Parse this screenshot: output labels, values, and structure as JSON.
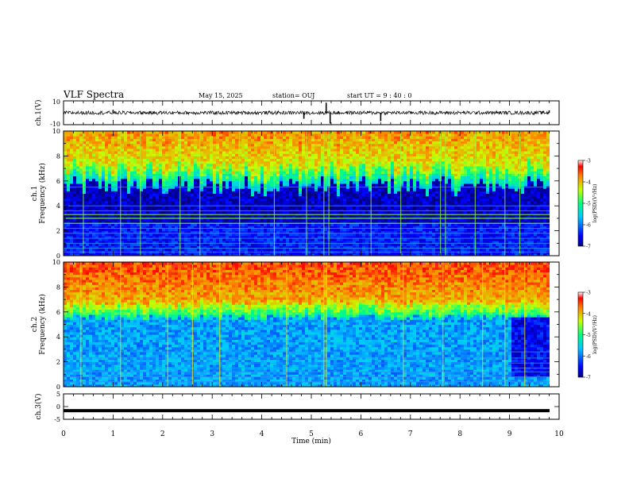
{
  "header": {
    "title": "VLF Spectra",
    "date": "May 15, 2025",
    "station": "station= OUJ",
    "start": "start  UT =   9 : 40 : 0"
  },
  "chart_data": [
    {
      "type": "line",
      "panel": "ch1-waveform",
      "ylabel": "ch.1(V)",
      "ylim": [
        -10,
        10
      ],
      "yticks": [
        "10",
        "-10"
      ],
      "xlim": [
        0,
        10
      ],
      "baseline": 0,
      "noise_amplitude": 1.5,
      "spikes": [
        {
          "x": 1.0,
          "y": 2.5
        },
        {
          "x": 4.85,
          "y": -5
        },
        {
          "x": 5.3,
          "y": 8.5
        },
        {
          "x": 5.38,
          "y": -9
        },
        {
          "x": 6.4,
          "y": -7
        },
        {
          "x": 9.8,
          "y": 2
        }
      ]
    },
    {
      "type": "heatmap",
      "panel": "ch1-spectrogram",
      "ylabel": "ch.1 Frequency (kHz)",
      "ylim": [
        0,
        10
      ],
      "yticks": [
        "0",
        "2",
        "4",
        "6",
        "8",
        "10"
      ],
      "xlim": [
        0,
        9.8
      ],
      "colorbar": {
        "label": "log(PSD)(V²/Hz)",
        "ticks": [
          "-3",
          "-4",
          "-5",
          "-6",
          "-7"
        ],
        "range": [
          -7,
          -3
        ]
      },
      "lines_khz": [
        0.3,
        0.6,
        1.0,
        1.4,
        1.8,
        2.2,
        2.6,
        3.0,
        3.3,
        3.6,
        4.0,
        5.5
      ],
      "green_lines_khz": [
        2.6,
        3.0,
        3.3
      ],
      "verticals_min": [
        0.4,
        1.15,
        1.55,
        2.35,
        2.75,
        3.55,
        4.25,
        4.9,
        5.25,
        5.35,
        6.2,
        6.8,
        7.6,
        7.7,
        8.3,
        8.9,
        9.2
      ]
    },
    {
      "type": "heatmap",
      "panel": "ch2-spectrogram",
      "ylabel": "ch.2 Frequency (kHz)",
      "ylim": [
        0,
        10
      ],
      "yticks": [
        "0",
        "2",
        "4",
        "6",
        "8",
        "10"
      ],
      "xlim": [
        0,
        9.8
      ],
      "colorbar": {
        "label": "log(PSD)(V²/Hz)",
        "ticks": [
          "-3",
          "-4",
          "-5",
          "-6",
          "-7"
        ],
        "range": [
          -7,
          -3
        ]
      },
      "lines_khz": [
        0.4,
        0.8,
        1.2,
        1.5,
        1.9,
        2.3,
        2.8
      ],
      "dark_region": {
        "x": [
          9.0,
          9.8
        ],
        "freq_khz": [
          0.8,
          5.5
        ]
      },
      "verticals_min": [
        0.35,
        1.15,
        2.1,
        2.6,
        3.15,
        4.5,
        5.25,
        5.3,
        6.85,
        7.65,
        8.45,
        8.9,
        9.3
      ]
    },
    {
      "type": "line",
      "panel": "ch3-waveform",
      "ylabel": "ch.3(V)",
      "ylim": [
        -5,
        5
      ],
      "yticks": [
        "5",
        "0",
        "-5"
      ],
      "xlim": [
        0,
        10
      ],
      "values": [
        -1.6,
        -1.6
      ]
    }
  ],
  "x_axis": {
    "label": "Time  (min)",
    "ticks": [
      "0",
      "1",
      "2",
      "3",
      "4",
      "5",
      "6",
      "7",
      "8",
      "9",
      "10"
    ]
  }
}
